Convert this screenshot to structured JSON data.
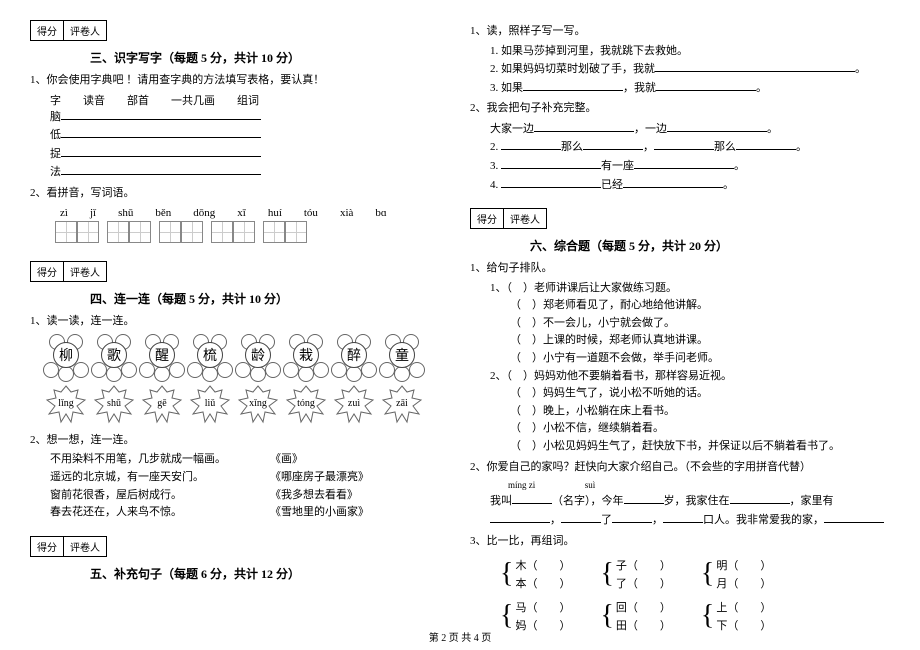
{
  "scorebox": {
    "score": "得分",
    "grader": "评卷人"
  },
  "section3": {
    "title": "三、识字写字（每题 5 分，共计 10 分）",
    "q1": "1、你会使用字典吧 ！请用查字典的方法填写表格，要认真！",
    "table_header": "字　　读音　　部首　　一共几画　　组词",
    "rows": [
      "脑",
      "低",
      "捉",
      "法"
    ],
    "q2": "2、看拼音，写词语。",
    "pinyin": [
      "zì",
      "jǐ",
      "shū",
      "běn",
      "dōng",
      "xī",
      "huí",
      "tóu",
      "xià",
      "bɑ"
    ]
  },
  "section4": {
    "title": "四、连一连（每题 5 分，共计 10 分）",
    "q1": "1、读一读，连一连。",
    "flowers": [
      "柳",
      "歌",
      "醒",
      "梳",
      "龄",
      "栽",
      "醉",
      "童"
    ],
    "leaves": [
      "lǐng",
      "shū",
      "gē",
      "liǔ",
      "xǐng",
      "tóng",
      "zuì",
      "zāi"
    ],
    "q2": "2、想一想，连一连。",
    "match": [
      {
        "l": "不用染料不用笔，几步就成一幅画。",
        "r": "《画》"
      },
      {
        "l": "遥远的北京城，有一座天安门。",
        "r": "《哪座房子最漂亮》"
      },
      {
        "l": "窗前花很香，屋后树成行。",
        "r": "《我多想去看看》"
      },
      {
        "l": "春去花还在，人来鸟不惊。",
        "r": "《雪地里的小画家》"
      }
    ]
  },
  "section5": {
    "title": "五、补充句子（每题 6 分，共计 12 分）",
    "q1": "1、读，照样子写一写。",
    "items1": [
      "1. 如果马莎掉到河里，我就跳下去救她。",
      "2. 如果妈妈切菜时划破了手，我就",
      "3. 如果",
      "，我就"
    ],
    "dot": "。",
    "q2": "2、我会把句子补充完整。",
    "items2": [
      {
        "pre": "大家一边",
        "mid": "，一边",
        "post": "。"
      },
      {
        "pre": "2. ",
        "a": "那么",
        "b": "，",
        "c": "那么",
        "post": "。"
      },
      {
        "pre": "3. ",
        "a": "有一座",
        "post": "。"
      },
      {
        "pre": "4. ",
        "a": "已经",
        "post": "。"
      }
    ]
  },
  "section6": {
    "title": "六、综合题（每题 5 分，共计 20 分）",
    "q1": "1、给句子排队。",
    "group1": [
      "1、（　）老师讲课后让大家做练习题。",
      "（　）郑老师看见了，耐心地给他讲解。",
      "（　）不一会儿，小宁就会做了。",
      "（　）上课的时候，郑老师认真地讲课。",
      "（　）小宁有一道题不会做，举手问老师。"
    ],
    "group2": [
      "2、（　）妈妈劝他不要躺着看书，那样容易近视。",
      "（　）妈妈生气了，说小松不听她的话。",
      "（　）晚上，小松躺在床上看书。",
      "（　）小松不信，继续躺着看。",
      "（　）小松见妈妈生气了，赶快放下书，并保证以后不躺着看书了。"
    ],
    "q2": "2、你爱自己的家吗？赶快向大家介绍自己。（不会些的字用拼音代替）",
    "pinyin_labels": [
      "míng zi",
      "suì"
    ],
    "intro_parts": [
      "我叫",
      "（名字），今年",
      "岁，我家住在",
      "，家里有",
      "，",
      "了",
      "，",
      "口人。我非常爱我的家，"
    ],
    "q3": "3、比一比，再组词。",
    "brackets": [
      [
        {
          "a": "木",
          "b": "本"
        },
        {
          "a": "子",
          "b": "了"
        },
        {
          "a": "明",
          "b": "月"
        }
      ],
      [
        {
          "a": "马",
          "b": "妈"
        },
        {
          "a": "回",
          "b": "田"
        },
        {
          "a": "上",
          "b": "下"
        }
      ]
    ]
  },
  "footer": "第 2 页 共 4 页"
}
